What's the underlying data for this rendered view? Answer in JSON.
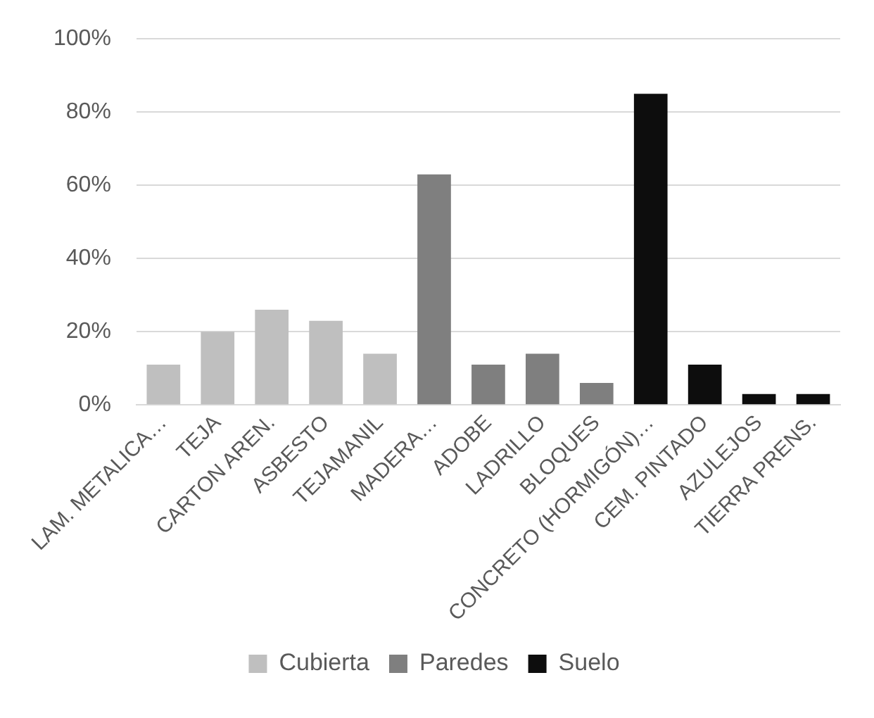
{
  "chart_data": {
    "type": "bar",
    "categories": [
      "LAM. METALICA…",
      "TEJA",
      "CARTON AREN.",
      "ASBESTO",
      "TEJAMANIL",
      "MADERA…",
      "ADOBE",
      "LADRILLO",
      "BLOQUES",
      "CONCRETO (HORMIGÓN)…",
      "CEM. PINTADO",
      "AZULEJOS",
      "TIERRA PRENS."
    ],
    "series": [
      {
        "name": "Cubierta",
        "color": "#bfbfbf",
        "values": [
          11,
          20,
          26,
          23,
          14,
          null,
          null,
          null,
          null,
          null,
          null,
          null,
          null
        ]
      },
      {
        "name": "Paredes",
        "color": "#7f7f7f",
        "values": [
          null,
          null,
          null,
          null,
          null,
          63,
          11,
          14,
          6,
          null,
          null,
          null,
          null
        ]
      },
      {
        "name": "Suelo",
        "color": "#0d0d0d",
        "values": [
          null,
          null,
          null,
          null,
          null,
          null,
          null,
          null,
          null,
          85,
          11,
          3,
          3
        ]
      }
    ],
    "ylim": [
      0,
      100
    ],
    "yticks": [
      {
        "value": 0,
        "label": "0%"
      },
      {
        "value": 20,
        "label": "20%"
      },
      {
        "value": 40,
        "label": "40%"
      },
      {
        "value": 60,
        "label": "60%"
      },
      {
        "value": 80,
        "label": "80%"
      },
      {
        "value": 100,
        "label": "100%"
      }
    ],
    "grid": "y",
    "legend": "bottom"
  }
}
